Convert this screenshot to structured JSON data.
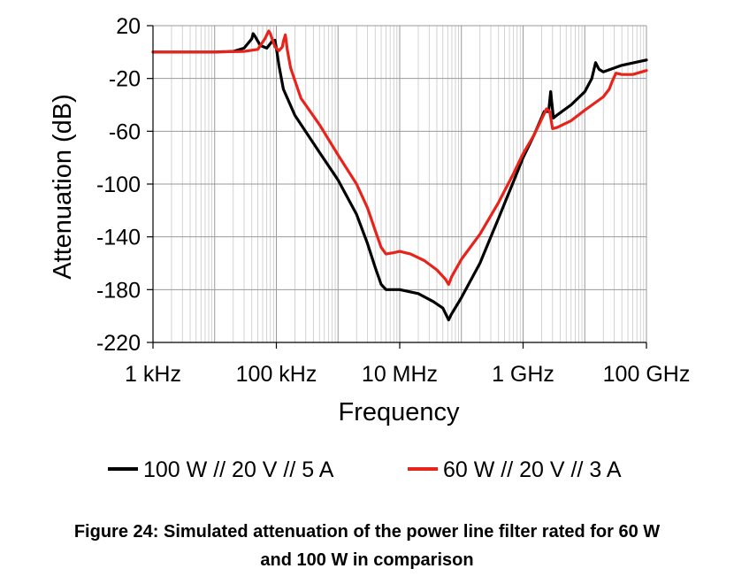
{
  "chart_data": {
    "type": "line",
    "title": "",
    "xlabel": "Frequency",
    "ylabel": "Attenuation (dB)",
    "xscale": "log",
    "xlim": [
      1000,
      100000000000
    ],
    "ylim": [
      -220,
      20
    ],
    "x_ticks": [
      1000,
      100000,
      10000000,
      1000000000,
      100000000000
    ],
    "x_tick_labels": [
      "1 kHz",
      "100 kHz",
      "10 MHz",
      "1 GHz",
      "100 GHz"
    ],
    "y_ticks": [
      20,
      -20,
      -60,
      -100,
      -140,
      -180,
      -220
    ],
    "y_tick_labels": [
      "20",
      "-20",
      "-60",
      "-100",
      "-140",
      "-180",
      "-220"
    ],
    "grid": true,
    "legend_position": "bottom",
    "series": [
      {
        "name": "100 W // 20 V // 5 A",
        "color": "#000000",
        "points": [
          [
            1000,
            0
          ],
          [
            10000,
            0
          ],
          [
            20000,
            0.5
          ],
          [
            30000,
            3
          ],
          [
            40000,
            10
          ],
          [
            42000,
            14
          ],
          [
            45000,
            12
          ],
          [
            55000,
            5
          ],
          [
            70000,
            3
          ],
          [
            85000,
            8
          ],
          [
            95000,
            9
          ],
          [
            100000,
            3
          ],
          [
            110000,
            -10
          ],
          [
            130000,
            -28
          ],
          [
            200000,
            -48
          ],
          [
            500000,
            -76
          ],
          [
            1000000,
            -97
          ],
          [
            2000000,
            -123
          ],
          [
            3000000,
            -145
          ],
          [
            4000000,
            -163
          ],
          [
            5000000,
            -176
          ],
          [
            6000000,
            -180
          ],
          [
            8000000,
            -180
          ],
          [
            10000000,
            -180
          ],
          [
            20000000,
            -183
          ],
          [
            35000000,
            -189
          ],
          [
            50000000,
            -194
          ],
          [
            58000000,
            -200
          ],
          [
            62000000,
            -203
          ],
          [
            68000000,
            -199
          ],
          [
            100000000,
            -186
          ],
          [
            200000000,
            -160
          ],
          [
            400000000,
            -126
          ],
          [
            700000000,
            -98
          ],
          [
            1000000000,
            -80
          ],
          [
            1500000000,
            -63
          ],
          [
            2200000000,
            -45
          ],
          [
            2600000000,
            -45
          ],
          [
            2800000000,
            -30
          ],
          [
            3100000000,
            -50
          ],
          [
            3500000000,
            -48
          ],
          [
            6000000000,
            -40
          ],
          [
            10000000000,
            -30
          ],
          [
            13000000000,
            -20
          ],
          [
            15000000000,
            -8
          ],
          [
            17000000000,
            -13
          ],
          [
            20000000000,
            -15
          ],
          [
            40000000000,
            -10
          ],
          [
            100000000000,
            -6
          ]
        ]
      },
      {
        "name": "60 W // 20 V // 3 A",
        "color": "#e8231b",
        "points": [
          [
            1000,
            0
          ],
          [
            10000,
            0
          ],
          [
            30000,
            0.5
          ],
          [
            50000,
            2
          ],
          [
            65000,
            10
          ],
          [
            75000,
            16
          ],
          [
            80000,
            14
          ],
          [
            95000,
            4
          ],
          [
            110000,
            1
          ],
          [
            125000,
            4
          ],
          [
            130000,
            8
          ],
          [
            140000,
            13
          ],
          [
            150000,
            2
          ],
          [
            170000,
            -12
          ],
          [
            250000,
            -35
          ],
          [
            500000,
            -55
          ],
          [
            1000000,
            -78
          ],
          [
            2000000,
            -100
          ],
          [
            3000000,
            -118
          ],
          [
            4000000,
            -135
          ],
          [
            5000000,
            -148
          ],
          [
            6000000,
            -153
          ],
          [
            8000000,
            -152
          ],
          [
            10000000,
            -151
          ],
          [
            15000000,
            -153
          ],
          [
            25000000,
            -158
          ],
          [
            40000000,
            -165
          ],
          [
            55000000,
            -172
          ],
          [
            62000000,
            -176
          ],
          [
            70000000,
            -170
          ],
          [
            100000000,
            -157
          ],
          [
            200000000,
            -138
          ],
          [
            400000000,
            -114
          ],
          [
            700000000,
            -92
          ],
          [
            1000000000,
            -77
          ],
          [
            1500000000,
            -63
          ],
          [
            2400000000,
            -43
          ],
          [
            2700000000,
            -45
          ],
          [
            3000000000,
            -58
          ],
          [
            3600000000,
            -57
          ],
          [
            6000000000,
            -52
          ],
          [
            10000000000,
            -44
          ],
          [
            20000000000,
            -34
          ],
          [
            25000000000,
            -28
          ],
          [
            28000000000,
            -22
          ],
          [
            32000000000,
            -16
          ],
          [
            40000000000,
            -17
          ],
          [
            60000000000,
            -17
          ],
          [
            100000000000,
            -14
          ]
        ]
      }
    ]
  },
  "caption": {
    "line1": "Figure 24: Simulated attenuation of the power line filter rated for 60 W",
    "line2": "and 100 W in comparison"
  }
}
